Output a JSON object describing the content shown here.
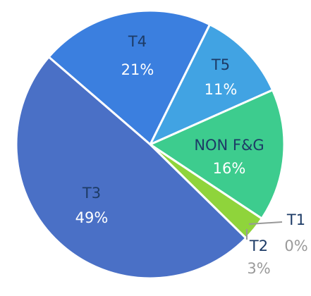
{
  "chart_data": {
    "type": "pie",
    "categories": [
      "T4",
      "T5",
      "NON F&G",
      "T1",
      "T2",
      "T3"
    ],
    "values": [
      21,
      11,
      16,
      0,
      3,
      49
    ],
    "value_labels": [
      "21%",
      "11%",
      "16%",
      "0%",
      "3%",
      "49%"
    ],
    "colors": [
      "#3b7fdf",
      "#41a3e3",
      "#3dcc8e",
      "#9e9e9e",
      "#8fd43b",
      "#4a70c6"
    ]
  }
}
